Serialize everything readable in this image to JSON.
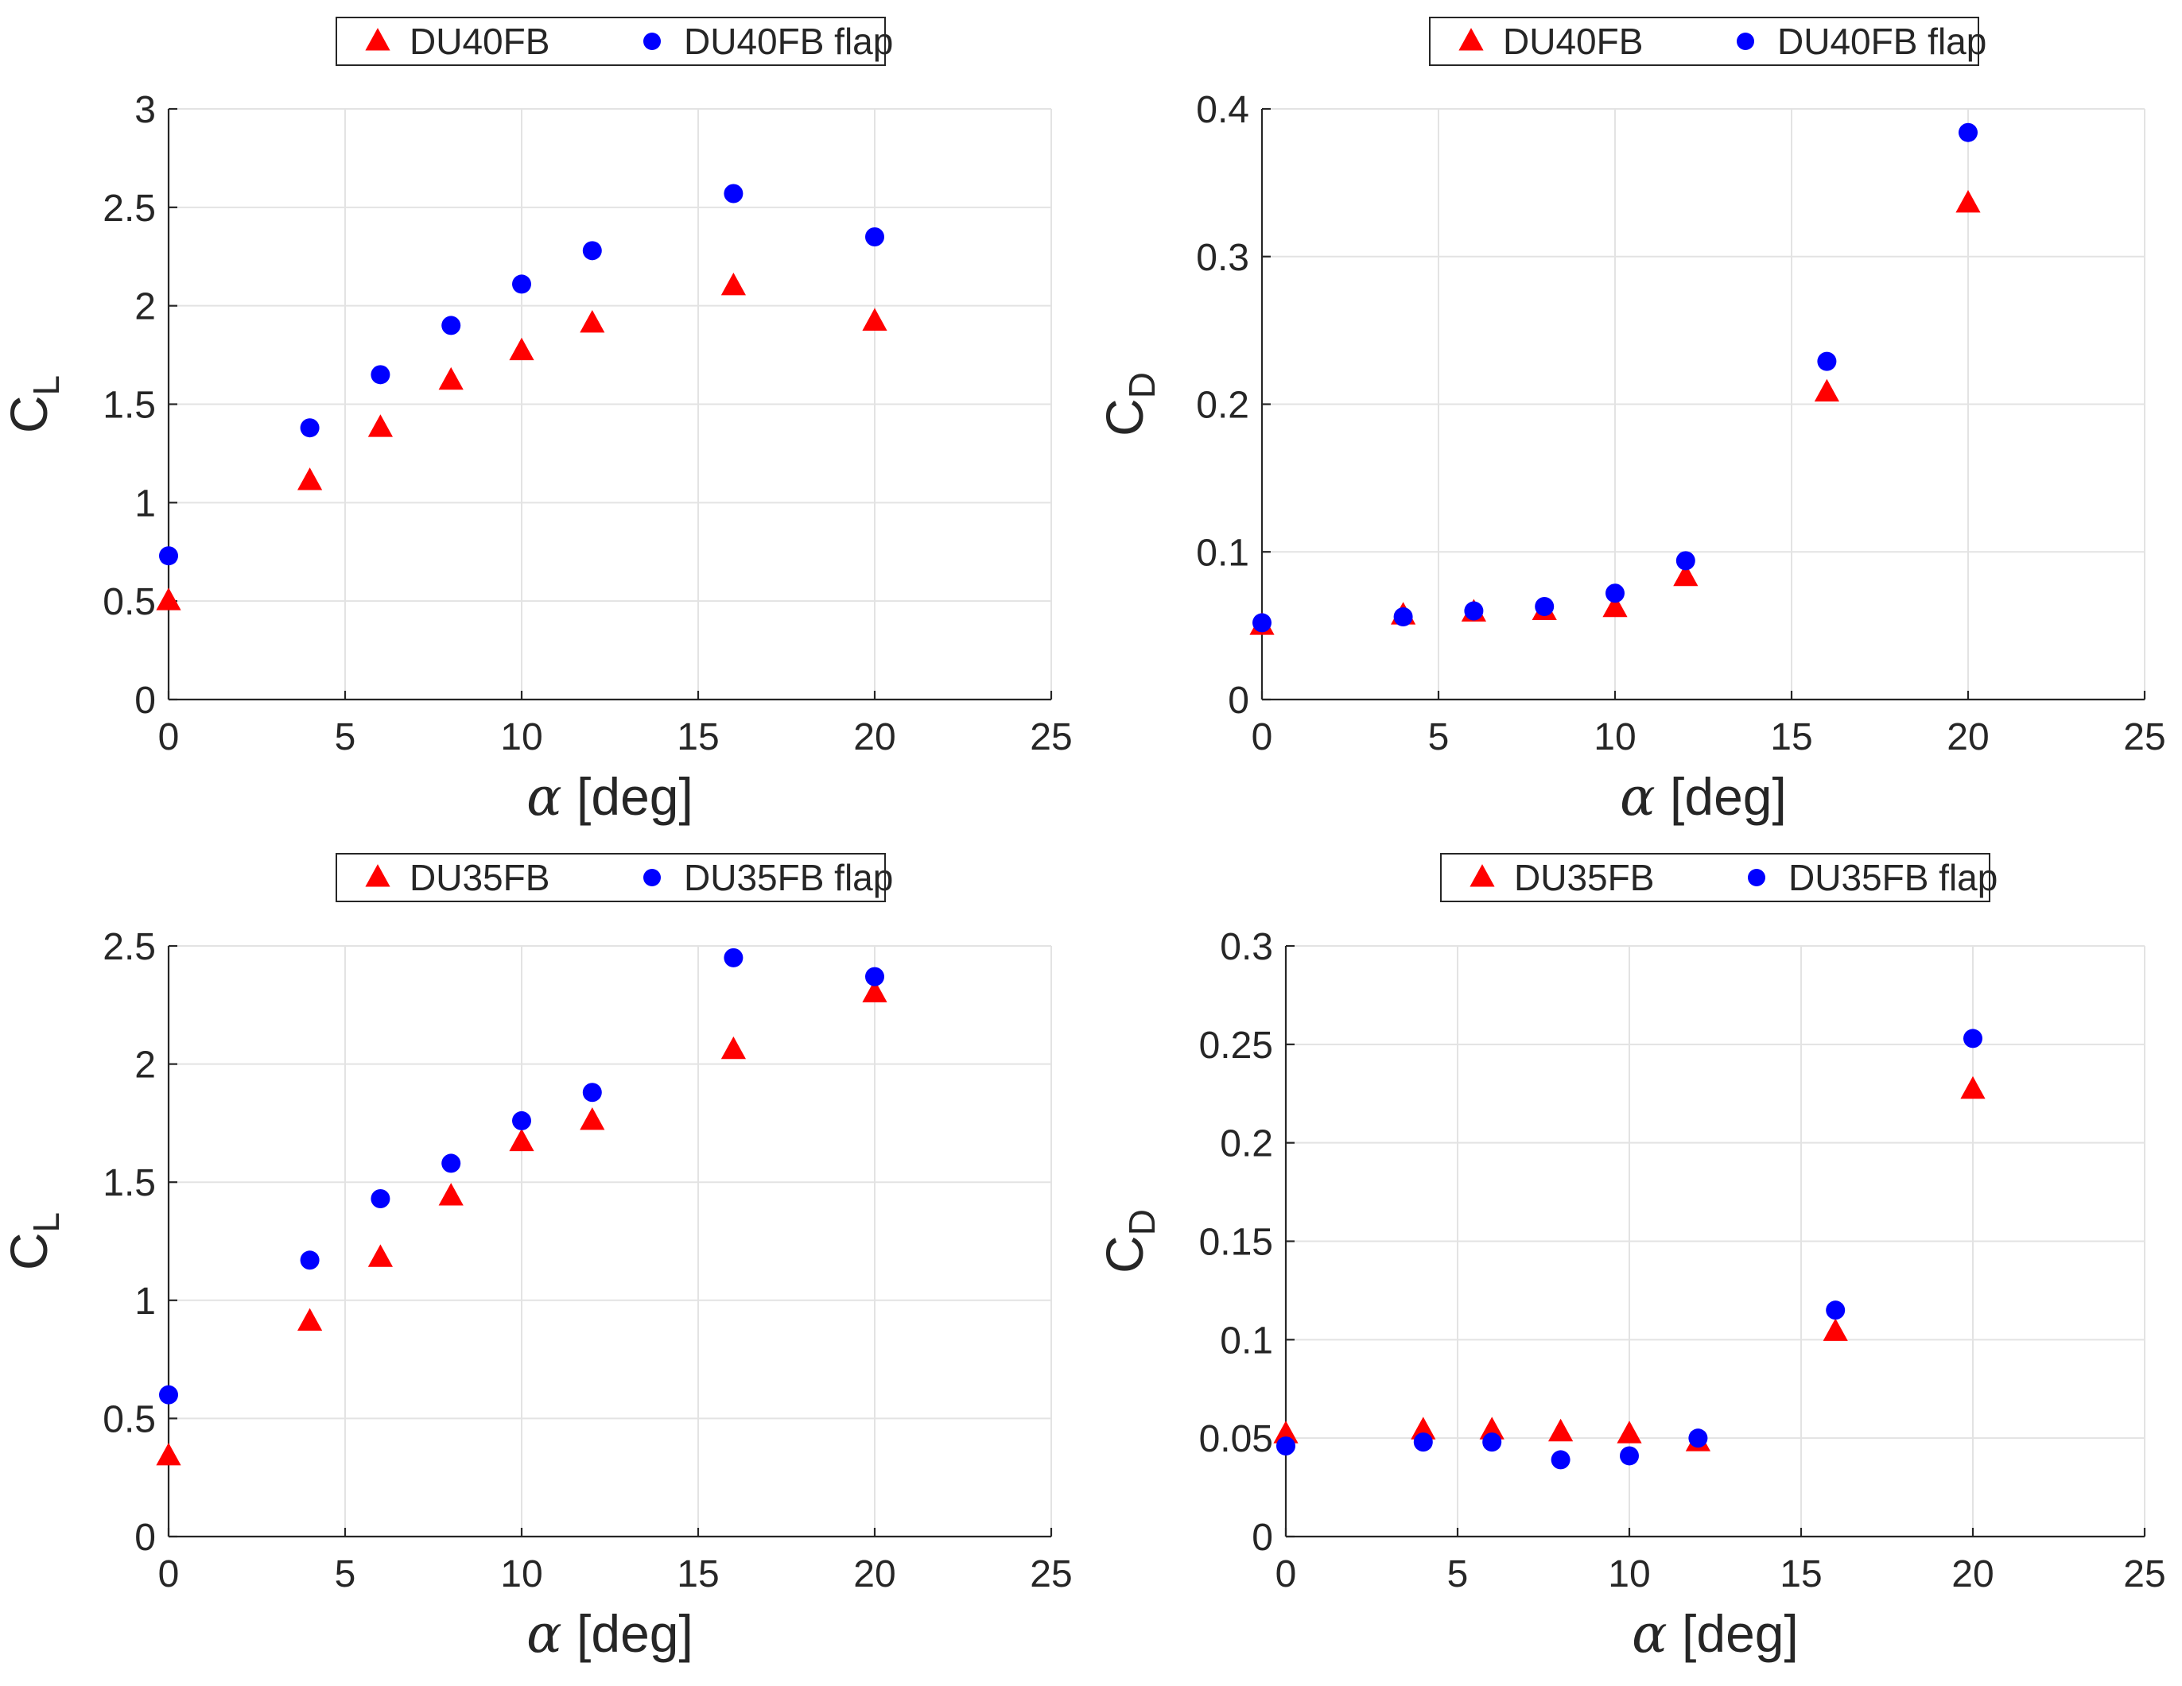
{
  "colors": {
    "without_flap": "#ff0000",
    "with_flap": "#0000ff",
    "grid": "#e3e3e3",
    "axis": "#262626"
  },
  "chart_data": [
    {
      "type": "scatter",
      "panel": "top-left",
      "legend": {
        "placement": "top",
        "entries": [
          "DU40FB",
          "DU40FB flap"
        ]
      },
      "xlabel": {
        "symbol": "α",
        "text": "[deg]"
      },
      "ylabel": {
        "main": "C",
        "sub": "L"
      },
      "xlim": [
        0,
        25
      ],
      "ylim": [
        0,
        3
      ],
      "xticks": [
        0,
        5,
        10,
        15,
        20,
        25
      ],
      "xtick_labels": [
        "0",
        "5",
        "10",
        "15",
        "20",
        "25"
      ],
      "yticks": [
        0,
        0.5,
        1,
        1.5,
        2,
        2.5,
        3
      ],
      "ytick_labels": [
        "0",
        "0.5",
        "1",
        "1.5",
        "2",
        "2.5",
        "3"
      ],
      "grid": true,
      "series": [
        {
          "name": "DU40FB",
          "marker": "triangle",
          "x": [
            0,
            4,
            6,
            8,
            10,
            12,
            16,
            20
          ],
          "y": [
            0.5,
            1.11,
            1.38,
            1.62,
            1.77,
            1.91,
            2.1,
            1.92
          ]
        },
        {
          "name": "DU40FB flap",
          "marker": "circle",
          "x": [
            0,
            4,
            6,
            8,
            10,
            12,
            16,
            20
          ],
          "y": [
            0.73,
            1.38,
            1.65,
            1.9,
            2.11,
            2.28,
            2.57,
            2.35
          ]
        }
      ]
    },
    {
      "type": "scatter",
      "panel": "top-right",
      "legend": {
        "placement": "top",
        "entries": [
          "DU40FB",
          "DU40FB flap"
        ]
      },
      "xlabel": {
        "symbol": "α",
        "text": "[deg]"
      },
      "ylabel": {
        "main": "C",
        "sub": "D"
      },
      "xlim": [
        0,
        25
      ],
      "ylim": [
        0,
        0.4
      ],
      "xticks": [
        0,
        5,
        10,
        15,
        20,
        25
      ],
      "xtick_labels": [
        "0",
        "5",
        "10",
        "15",
        "20",
        "25"
      ],
      "yticks": [
        0,
        0.1,
        0.2,
        0.3,
        0.4
      ],
      "ytick_labels": [
        "0",
        "0.1",
        "0.2",
        "0.3",
        "0.4"
      ],
      "grid": true,
      "series": [
        {
          "name": "DU40FB",
          "marker": "triangle",
          "x": [
            0,
            4,
            6,
            8,
            10,
            12,
            16,
            20
          ],
          "y": [
            0.05,
            0.057,
            0.059,
            0.06,
            0.062,
            0.083,
            0.208,
            0.336
          ]
        },
        {
          "name": "DU40FB flap",
          "marker": "circle",
          "x": [
            0,
            4,
            6,
            8,
            10,
            12,
            16,
            20
          ],
          "y": [
            0.052,
            0.056,
            0.06,
            0.063,
            0.072,
            0.094,
            0.229,
            0.384
          ]
        }
      ]
    },
    {
      "type": "scatter",
      "panel": "bottom-left",
      "legend": {
        "placement": "top",
        "entries": [
          "DU35FB",
          "DU35FB flap"
        ]
      },
      "xlabel": {
        "symbol": "α",
        "text": "[deg]"
      },
      "ylabel": {
        "main": "C",
        "sub": "L"
      },
      "xlim": [
        0,
        25
      ],
      "ylim": [
        0,
        2.5
      ],
      "xticks": [
        0,
        5,
        10,
        15,
        20,
        25
      ],
      "xtick_labels": [
        "0",
        "5",
        "10",
        "15",
        "20",
        "25"
      ],
      "yticks": [
        0,
        0.5,
        1,
        1.5,
        2,
        2.5
      ],
      "ytick_labels": [
        "0",
        "0.5",
        "1",
        "1.5",
        "2",
        "2.5"
      ],
      "grid": true,
      "series": [
        {
          "name": "DU35FB",
          "marker": "triangle",
          "x": [
            0,
            4,
            6,
            8,
            10,
            12,
            16,
            20
          ],
          "y": [
            0.34,
            0.91,
            1.18,
            1.44,
            1.67,
            1.76,
            2.06,
            2.3
          ]
        },
        {
          "name": "DU35FB flap",
          "marker": "circle",
          "x": [
            0,
            4,
            6,
            8,
            10,
            12,
            16,
            20
          ],
          "y": [
            0.6,
            1.17,
            1.43,
            1.58,
            1.76,
            1.88,
            2.45,
            2.37
          ]
        }
      ]
    },
    {
      "type": "scatter",
      "panel": "bottom-right",
      "legend": {
        "placement": "top",
        "entries": [
          "DU35FB",
          "DU35FB flap"
        ]
      },
      "xlabel": {
        "symbol": "α",
        "text": "[deg]"
      },
      "ylabel": {
        "main": "C",
        "sub": "D"
      },
      "xlim": [
        0,
        25
      ],
      "ylim": [
        0,
        0.3
      ],
      "xticks": [
        0,
        5,
        10,
        15,
        20,
        25
      ],
      "xtick_labels": [
        "0",
        "5",
        "10",
        "15",
        "20",
        "25"
      ],
      "yticks": [
        0,
        0.05,
        0.1,
        0.15,
        0.2,
        0.25,
        0.3
      ],
      "ytick_labels": [
        "0",
        "0.05",
        "0.1",
        "0.15",
        "0.2",
        "0.25",
        "0.3"
      ],
      "grid": true,
      "series": [
        {
          "name": "DU35FB",
          "marker": "triangle",
          "x": [
            0,
            4,
            6,
            8,
            10,
            12,
            16,
            20
          ],
          "y": [
            0.052,
            0.054,
            0.054,
            0.053,
            0.052,
            0.048,
            0.104,
            0.227
          ]
        },
        {
          "name": "DU35FB flap",
          "marker": "circle",
          "x": [
            0,
            4,
            6,
            8,
            10,
            12,
            16,
            20
          ],
          "y": [
            0.046,
            0.048,
            0.048,
            0.039,
            0.041,
            0.05,
            0.115,
            0.253
          ]
        }
      ]
    }
  ]
}
